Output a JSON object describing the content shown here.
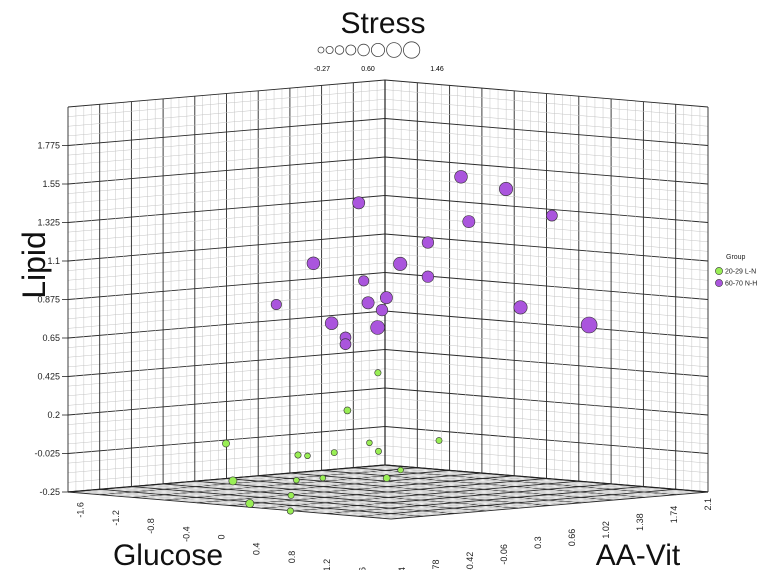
{
  "chart_data": {
    "type": "scatter",
    "projection": "3d",
    "title": "Stress",
    "size_legend": {
      "label": "Stress",
      "ticks": [
        "-0.27",
        "0.60",
        "1.46"
      ]
    },
    "axes": {
      "y": {
        "label": "Lipid",
        "ticks": [
          "-0.25",
          "-0.025",
          "0.2",
          "0.425",
          "0.65",
          "0.875",
          "1.1",
          "1.325",
          "1.55",
          "1.775"
        ],
        "range": [
          -0.25,
          2.0
        ]
      },
      "x": {
        "label": "Glucose",
        "ticks": [
          "-1.6",
          "-1.2",
          "-0.8",
          "-0.4",
          "0",
          "0.4",
          "0.8",
          "1.2",
          "1.6"
        ],
        "range": [
          -1.8,
          1.8
        ]
      },
      "z": {
        "label": "AA-Vit",
        "ticks": [
          "-1.14",
          "-0.78",
          "-0.42",
          "-0.06",
          "0.3",
          "0.66",
          "1.02",
          "1.38",
          "1.74",
          "2.1"
        ],
        "range": [
          -1.32,
          2.1
        ]
      }
    },
    "grid": true,
    "legend": {
      "title": "Group",
      "position": "right",
      "entries": [
        {
          "label": "20-29 L-N",
          "color": "#99ee55"
        },
        {
          "label": "60-70 N-H",
          "color": "#aa55dd"
        }
      ]
    },
    "series": [
      {
        "name": "20-29 L-N",
        "color": "#99ee55",
        "points": [
          {
            "glucose": 0.25,
            "aavit": 0.05,
            "lipid": 0.42,
            "stress": -0.2
          },
          {
            "glucose": -0.15,
            "aavit": 0.1,
            "lipid": 0.22,
            "stress": -0.1
          },
          {
            "glucose": -1.1,
            "aavit": -0.3,
            "lipid": 0.05,
            "stress": -0.05
          },
          {
            "glucose": -0.7,
            "aavit": -0.6,
            "lipid": -0.2,
            "stress": 0.1
          },
          {
            "glucose": -0.55,
            "aavit": -0.05,
            "lipid": -0.03,
            "stress": -0.2
          },
          {
            "glucose": -0.55,
            "aavit": 0.05,
            "lipid": -0.03,
            "stress": -0.3
          },
          {
            "glucose": -0.3,
            "aavit": 0.1,
            "lipid": -0.02,
            "stress": -0.25
          },
          {
            "glucose": 0.1,
            "aavit": 0.1,
            "lipid": 0.02,
            "stress": -0.3
          },
          {
            "glucose": 0.15,
            "aavit": 0.15,
            "lipid": -0.03,
            "stress": -0.25
          },
          {
            "glucose": 0.3,
            "aavit": 0.65,
            "lipid": 0.05,
            "stress": -0.25
          },
          {
            "glucose": -0.3,
            "aavit": -0.3,
            "lipid": -0.2,
            "stress": -0.3
          },
          {
            "glucose": 0.0,
            "aavit": -0.3,
            "lipid": -0.2,
            "stress": -0.3
          },
          {
            "glucose": 0.35,
            "aavit": 0.05,
            "lipid": -0.2,
            "stress": -0.1
          },
          {
            "glucose": 0.4,
            "aavit": 0.15,
            "lipid": -0.15,
            "stress": -0.3
          },
          {
            "glucose": -0.4,
            "aavit": -0.7,
            "lipid": -0.35,
            "stress": 0.1
          },
          {
            "glucose": -0.2,
            "aavit": -0.45,
            "lipid": -0.3,
            "stress": -0.25
          },
          {
            "glucose": -0.1,
            "aavit": -0.55,
            "lipid": -0.4,
            "stress": -0.2
          }
        ]
      },
      {
        "name": "60-70 N-H",
        "color": "#aa55dd",
        "points": [
          {
            "glucose": 0.55,
            "aavit": 0.65,
            "lipid": 1.58,
            "stress": 0.9
          },
          {
            "glucose": 0.3,
            "aavit": -0.2,
            "lipid": 1.4,
            "stress": 0.8
          },
          {
            "glucose": 0.9,
            "aavit": 0.8,
            "lipid": 1.5,
            "stress": 1.0
          },
          {
            "glucose": 1.1,
            "aavit": 1.1,
            "lipid": 1.35,
            "stress": 0.6
          },
          {
            "glucose": 0.8,
            "aavit": 0.5,
            "lipid": 1.3,
            "stress": 0.8
          },
          {
            "glucose": 0.55,
            "aavit": 0.3,
            "lipid": 1.18,
            "stress": 0.7
          },
          {
            "glucose": 0.0,
            "aavit": -0.4,
            "lipid": 1.05,
            "stress": 0.9
          },
          {
            "glucose": 0.45,
            "aavit": 0.1,
            "lipid": 1.05,
            "stress": 1.0
          },
          {
            "glucose": 0.55,
            "aavit": 0.3,
            "lipid": 0.98,
            "stress": 0.7
          },
          {
            "glucose": 0.25,
            "aavit": -0.1,
            "lipid": 0.95,
            "stress": 0.5
          },
          {
            "glucose": 0.4,
            "aavit": 0.0,
            "lipid": 0.85,
            "stress": 0.8
          },
          {
            "glucose": 0.3,
            "aavit": -0.1,
            "lipid": 0.82,
            "stress": 0.8
          },
          {
            "glucose": 0.35,
            "aavit": 0.0,
            "lipid": 0.78,
            "stress": 0.7
          },
          {
            "glucose": 0.85,
            "aavit": 1.0,
            "lipid": 0.82,
            "stress": 1.0
          },
          {
            "glucose": -0.1,
            "aavit": -0.7,
            "lipid": 0.8,
            "stress": 0.5
          },
          {
            "glucose": 0.1,
            "aavit": -0.3,
            "lipid": 0.7,
            "stress": 0.9
          },
          {
            "glucose": 0.3,
            "aavit": 0.0,
            "lipid": 0.68,
            "stress": 1.1
          },
          {
            "glucose": 0.15,
            "aavit": -0.2,
            "lipid": 0.62,
            "stress": 0.6
          },
          {
            "glucose": 0.15,
            "aavit": -0.2,
            "lipid": 0.58,
            "stress": 0.6
          },
          {
            "glucose": 1.2,
            "aavit": 1.4,
            "lipid": 0.72,
            "stress": 1.46
          }
        ]
      }
    ]
  }
}
